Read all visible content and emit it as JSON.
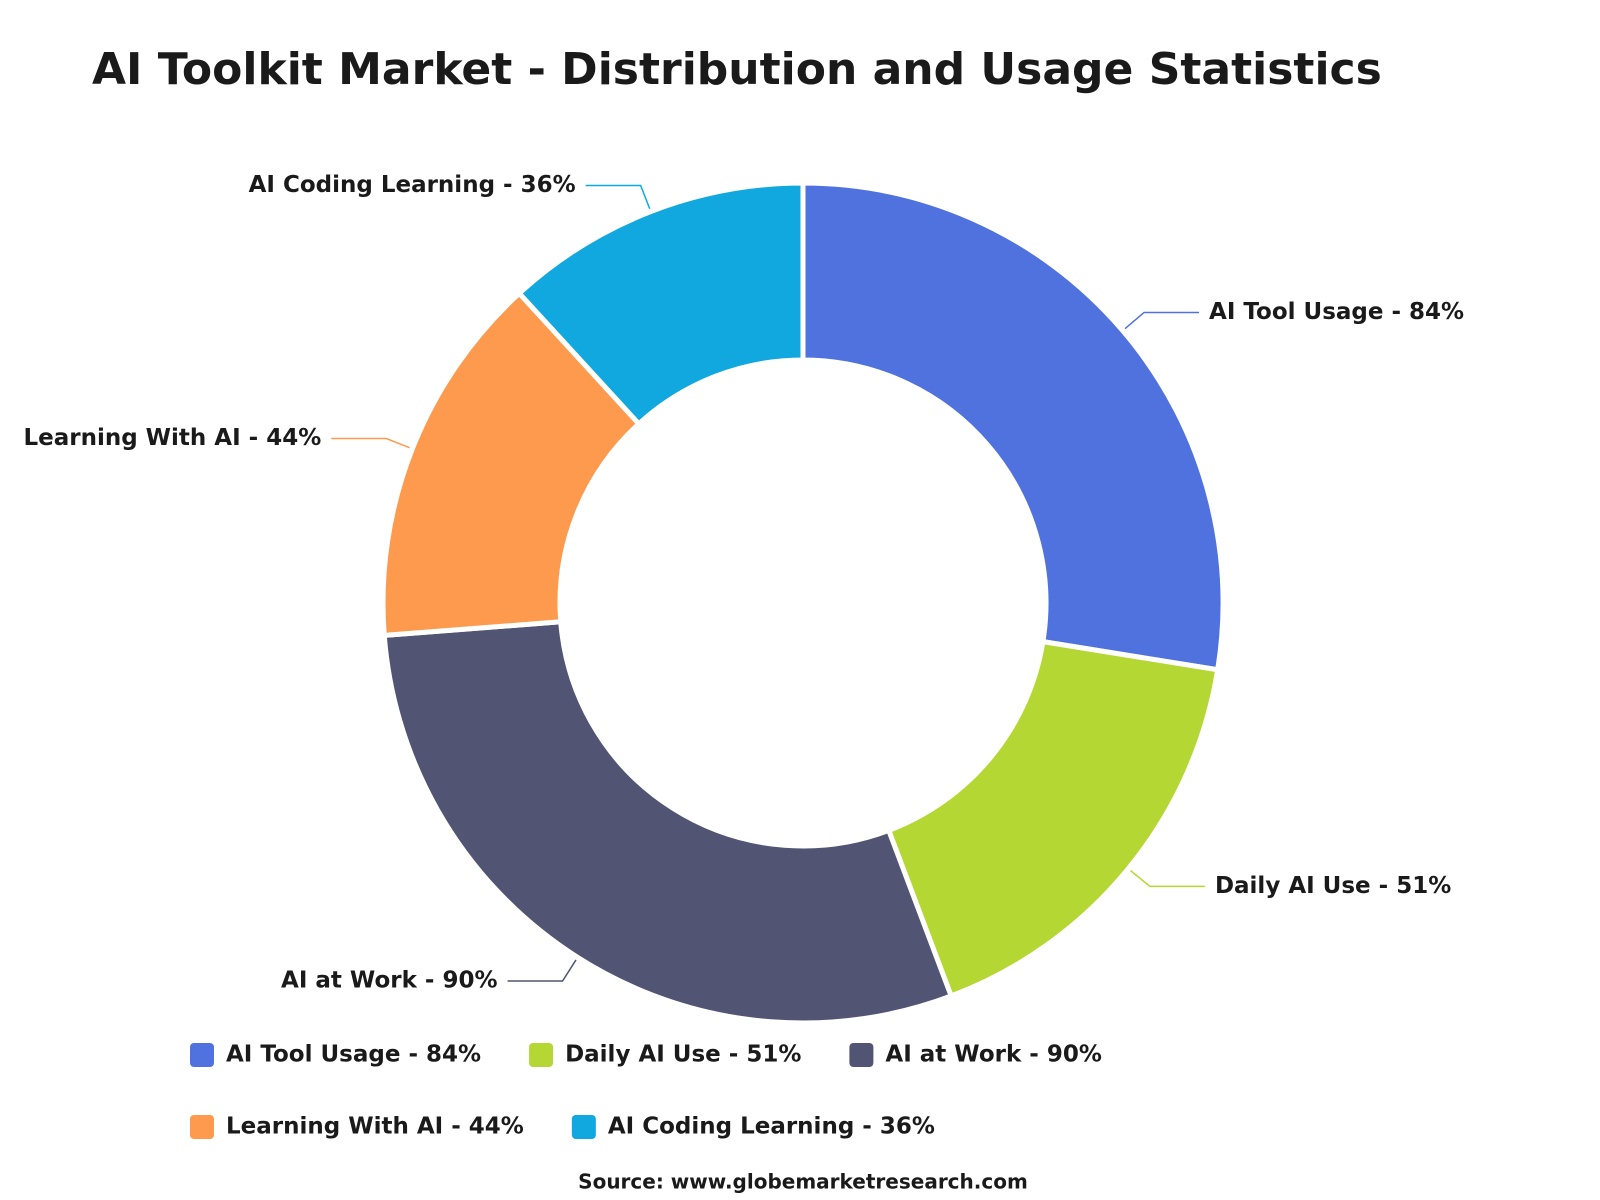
{
  "chart_data": {
    "type": "donut",
    "title": "AI Toolkit Market - Distribution and Usage Statistics",
    "categories": [
      "AI Tool Usage - 84%",
      "Daily AI Use - 51%",
      "AI at Work - 90%",
      "Learning With AI - 44%",
      "AI Coding Learning - 36%"
    ],
    "values": [
      84,
      51,
      90,
      44,
      36
    ],
    "colors": [
      "#5072df",
      "#b5d733",
      "#515473",
      "#fd9a4d",
      "#10a8df"
    ],
    "legend": "bottom",
    "source": "Source: www.globemarketresearch.com"
  }
}
